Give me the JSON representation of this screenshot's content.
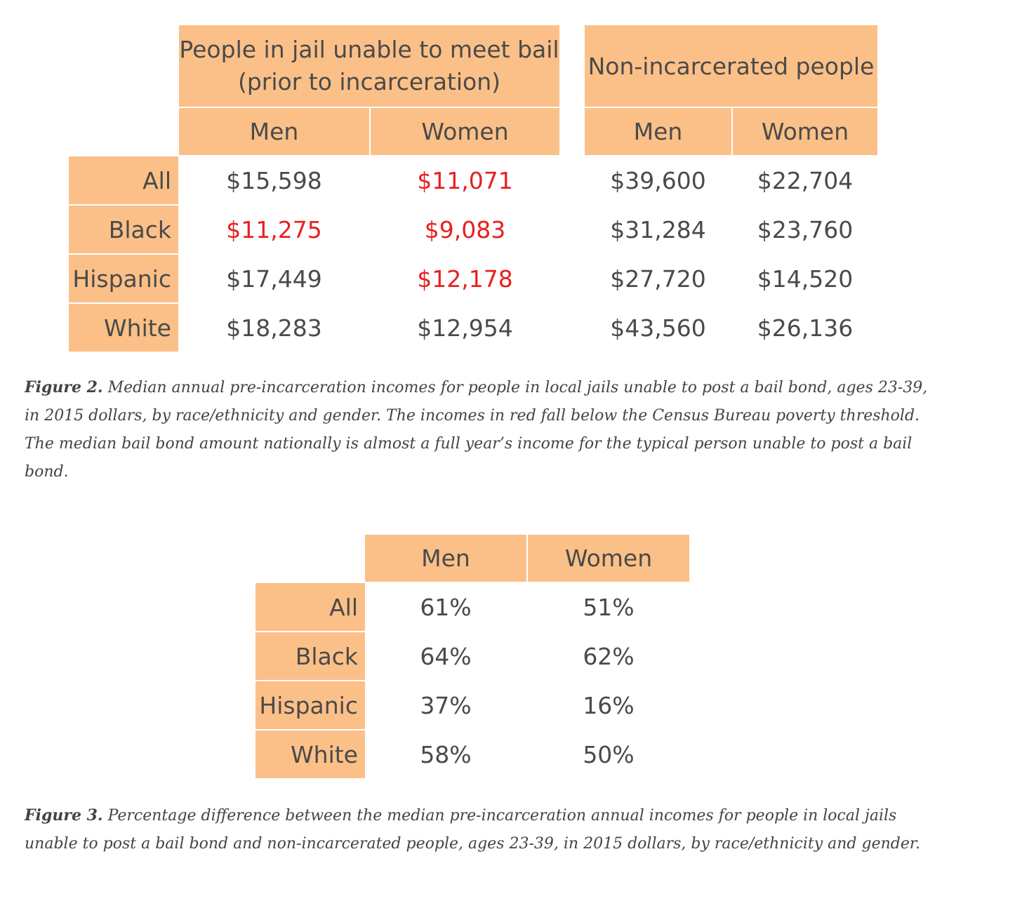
{
  "figure2": {
    "group_headers": [
      "People in jail unable to meet bail",
      "(prior to incarceration)",
      "Non-incarcerated people"
    ],
    "sub_headers": [
      "Men",
      "Women",
      "Men",
      "Women"
    ],
    "rows": [
      {
        "label": "All",
        "values": [
          "$15,598",
          "$11,071",
          "$39,600",
          "$22,704"
        ],
        "below_poverty": [
          false,
          true,
          false,
          false
        ]
      },
      {
        "label": "Black",
        "values": [
          "$11,275",
          "$9,083",
          "$31,284",
          "$23,760"
        ],
        "below_poverty": [
          true,
          true,
          false,
          false
        ]
      },
      {
        "label": "Hispanic",
        "values": [
          "$17,449",
          "$12,178",
          "$27,720",
          "$14,520"
        ],
        "below_poverty": [
          false,
          true,
          false,
          false
        ]
      },
      {
        "label": "White",
        "values": [
          "$18,283",
          "$12,954",
          "$43,560",
          "$26,136"
        ],
        "below_poverty": [
          false,
          false,
          false,
          false
        ]
      }
    ],
    "caption_label": "Figure 2.",
    "caption_text": " Median annual pre-incarceration incomes for people in local jails unable to post a bail bond, ages 23-39, in 2015 dollars, by race/ethnicity and gender. The incomes in red fall below the Census Bureau poverty threshold. The median bail bond amount nationally is almost a full year’s income for the typical person unable to post a bail bond."
  },
  "figure3": {
    "headers": [
      "Men",
      "Women"
    ],
    "rows": [
      {
        "label": "All",
        "values": [
          "61%",
          "51%"
        ]
      },
      {
        "label": "Black",
        "values": [
          "64%",
          "62%"
        ]
      },
      {
        "label": "Hispanic",
        "values": [
          "37%",
          "16%"
        ]
      },
      {
        "label": "White",
        "values": [
          "58%",
          "50%"
        ]
      }
    ],
    "caption_label": "Figure 3.",
    "caption_text": " Percentage difference between the median pre-incarceration annual incomes for people in local jails unable to post a bail bond and non-incarcerated people, ages 23-39, in 2015 dollars, by race/ethnicity and gender."
  },
  "colors": {
    "header_fill": "#fbc088",
    "text": "#4a4a4a",
    "below_poverty": "#e8201f"
  }
}
